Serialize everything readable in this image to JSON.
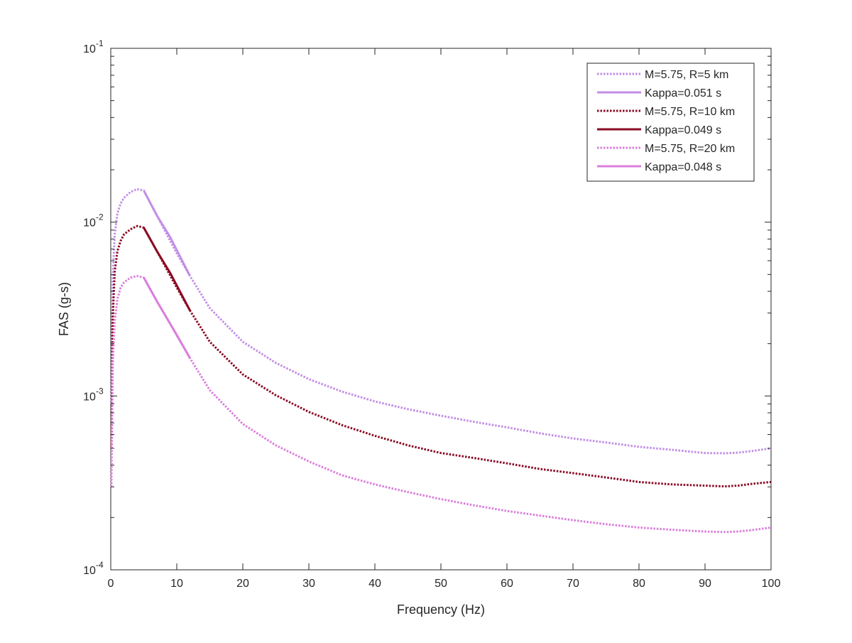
{
  "chart_data": {
    "type": "line",
    "title": "",
    "xlabel": "Frequency (Hz)",
    "ylabel": "FAS (g-s)",
    "xlim": [
      0,
      100
    ],
    "ylim": [
      0.0001,
      0.1
    ],
    "yscale": "log",
    "grid": false,
    "legend_position": "top-right",
    "x_ticks": [
      0,
      10,
      20,
      30,
      40,
      50,
      60,
      70,
      80,
      90,
      100
    ],
    "x_tick_labels": [
      "0",
      "10",
      "20",
      "30",
      "40",
      "50",
      "60",
      "70",
      "80",
      "90",
      "100"
    ],
    "y_ticks": [
      0.0001,
      0.001,
      0.01,
      0.1
    ],
    "y_tick_labels": [
      {
        "base": "10",
        "exp": "-4"
      },
      {
        "base": "10",
        "exp": "-3"
      },
      {
        "base": "10",
        "exp": "-2"
      },
      {
        "base": "10",
        "exp": "-1"
      }
    ],
    "series": [
      {
        "name": "M=5.75, R=5 km",
        "color": "#c28ee6",
        "style": "dotted",
        "x": [
          0.1,
          0.3,
          0.6,
          1,
          1.5,
          2,
          3,
          4,
          5,
          7,
          10,
          12,
          15,
          20,
          25,
          30,
          35,
          40,
          45,
          50,
          55,
          60,
          65,
          70,
          75,
          80,
          85,
          90,
          93,
          95,
          97,
          100
        ],
        "y": [
          0.0009,
          0.0048,
          0.0085,
          0.0112,
          0.0128,
          0.0138,
          0.0149,
          0.0155,
          0.0152,
          0.0109,
          0.0066,
          0.0049,
          0.0032,
          0.00205,
          0.00155,
          0.00125,
          0.00106,
          0.00093,
          0.00084,
          0.00077,
          0.00071,
          0.00066,
          0.00061,
          0.00057,
          0.00054,
          0.00051,
          0.00049,
          0.00047,
          0.000468,
          0.000472,
          0.000482,
          0.0005
        ]
      },
      {
        "name": "Kappa=0.051 s",
        "color": "#c28ee6",
        "style": "solid",
        "x": [
          5,
          7,
          9,
          12
        ],
        "y": [
          0.0152,
          0.0109,
          0.0082,
          0.0049
        ]
      },
      {
        "name": "M=5.75, R=10 km",
        "color": "#8b0a24",
        "style": "dotted",
        "x": [
          0.1,
          0.3,
          0.6,
          1,
          1.5,
          2,
          3,
          4,
          5,
          7,
          10,
          12,
          15,
          20,
          25,
          30,
          35,
          40,
          45,
          50,
          55,
          60,
          65,
          70,
          75,
          80,
          85,
          90,
          93,
          95,
          97,
          100
        ],
        "y": [
          0.0005,
          0.0028,
          0.0052,
          0.0068,
          0.0078,
          0.0085,
          0.0091,
          0.0095,
          0.0093,
          0.0068,
          0.0042,
          0.0031,
          0.00205,
          0.00133,
          0.00101,
          0.00081,
          0.00068,
          0.00059,
          0.00052,
          0.00047,
          0.00044,
          0.00041,
          0.00038,
          0.00036,
          0.00034,
          0.00032,
          0.00031,
          0.000305,
          0.000302,
          0.000305,
          0.000312,
          0.00032
        ]
      },
      {
        "name": "Kappa=0.049 s",
        "color": "#8b0a24",
        "style": "solid",
        "x": [
          5,
          7,
          9,
          12
        ],
        "y": [
          0.0093,
          0.0068,
          0.0051,
          0.0031
        ]
      },
      {
        "name": "M=5.75, R=20 km",
        "color": "#db7edb",
        "style": "dotted",
        "x": [
          0.1,
          0.3,
          0.6,
          1,
          1.5,
          2,
          3,
          4,
          5,
          7,
          10,
          12,
          15,
          20,
          25,
          30,
          35,
          40,
          45,
          50,
          55,
          60,
          65,
          70,
          75,
          80,
          85,
          90,
          93,
          95,
          97,
          100
        ],
        "y": [
          0.0003,
          0.0015,
          0.0027,
          0.0036,
          0.0042,
          0.0045,
          0.0048,
          0.0049,
          0.0048,
          0.0035,
          0.00225,
          0.00165,
          0.00108,
          0.00069,
          0.00052,
          0.00042,
          0.00035,
          0.00031,
          0.00028,
          0.000255,
          0.000235,
          0.000218,
          0.000205,
          0.000193,
          0.000183,
          0.000175,
          0.00017,
          0.000166,
          0.000165,
          0.000166,
          0.000169,
          0.000175
        ]
      },
      {
        "name": "Kappa=0.048 s",
        "color": "#db7edb",
        "style": "solid",
        "x": [
          5,
          7,
          9,
          12
        ],
        "y": [
          0.0048,
          0.0035,
          0.0026,
          0.00165
        ]
      }
    ]
  }
}
